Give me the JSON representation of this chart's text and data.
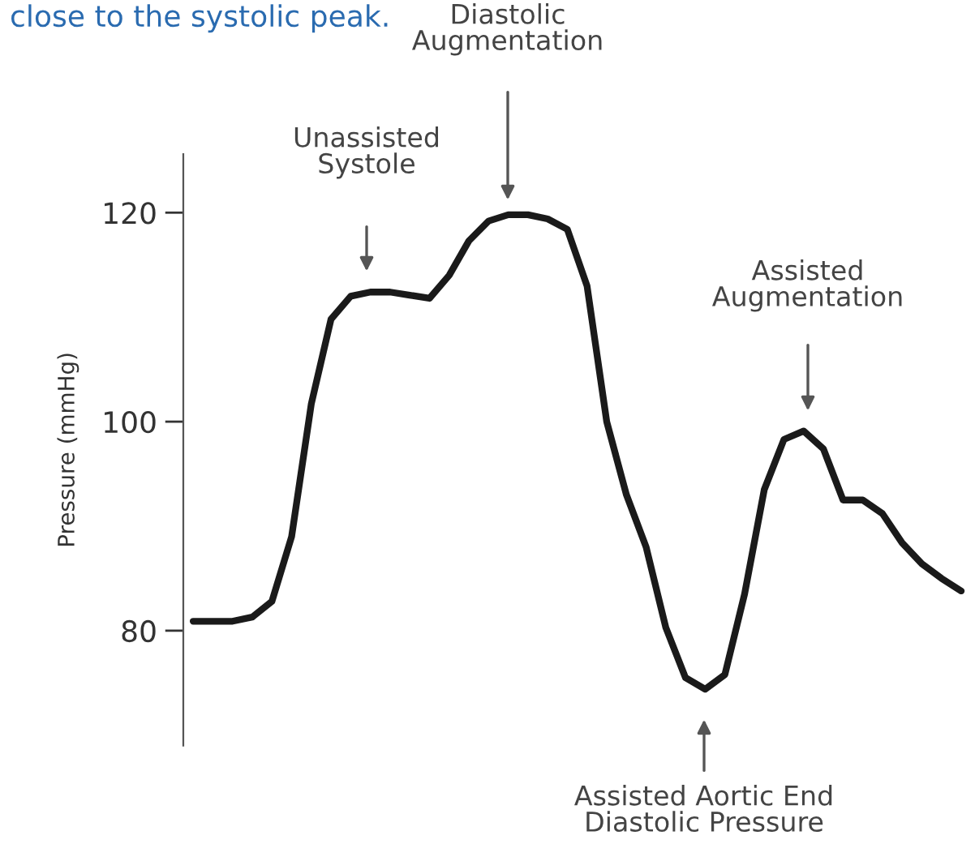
{
  "chart_data": {
    "type": "line",
    "ylabel": "Pressure (mmHg)",
    "categories": [
      null,
      null,
      null,
      null,
      null,
      null,
      null,
      null,
      null,
      null,
      null,
      null,
      null,
      null,
      null,
      null,
      null,
      null,
      null,
      null,
      null,
      null,
      null,
      null,
      null,
      null,
      null,
      null,
      null,
      null,
      null,
      null,
      null,
      null,
      null,
      null,
      null,
      null,
      null,
      null
    ],
    "series": [
      {
        "color": "#1a1a1a",
        "values": [
          80.9,
          80.9,
          80.9,
          81.3,
          82.8,
          89,
          101.7,
          109.8,
          112,
          112.4,
          112.4,
          112.1,
          111.8,
          114,
          117.3,
          119.2,
          119.8,
          119.8,
          119.4,
          118.4,
          113,
          100,
          93,
          88,
          80.3,
          75.5,
          74.4,
          75.8,
          83.5,
          93.5,
          98.3,
          99.1,
          97.4,
          92.5,
          92.5,
          91.2,
          88.4,
          86.4,
          85,
          83.8
        ]
      }
    ],
    "ylim": [
      69,
      125.6
    ],
    "yticks": [
      80,
      100,
      120
    ],
    "tick_labels": "y",
    "grid": false,
    "legend": false,
    "marker": "none",
    "line_style": "solid",
    "annotations": [
      "close to the systolic peak.",
      "Unassisted\nSystole",
      "Diastolic\nAugmentation",
      "Assisted\nAugmentation",
      "Assisted Aortic End\nDiastolic Pressure"
    ]
  }
}
